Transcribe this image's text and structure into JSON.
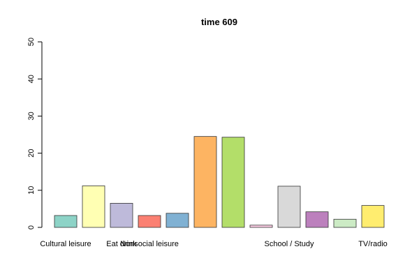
{
  "chart_data": {
    "type": "bar",
    "title": "time 609",
    "xlabel": "",
    "ylabel": "",
    "ylim": [
      0,
      50
    ],
    "yticks": [
      0,
      10,
      20,
      30,
      40,
      50
    ],
    "categories": [
      "Cultural leisure",
      "",
      "Eat drink",
      "Nonsocial leisure",
      "",
      "",
      "",
      "",
      "School / Study",
      "",
      "",
      "TV/radio"
    ],
    "values": [
      3.2,
      11.2,
      6.5,
      3.2,
      3.8,
      24.5,
      24.3,
      0.6,
      11.1,
      4.2,
      2.2,
      5.9
    ],
    "colors": [
      "#8DD3C7",
      "#FFFFB3",
      "#BEBADA",
      "#FB8072",
      "#80B1D3",
      "#FDB462",
      "#B3DE69",
      "#FCCDE5",
      "#D9D9D9",
      "#BC80BD",
      "#CCEBC5",
      "#FFED6F"
    ]
  }
}
